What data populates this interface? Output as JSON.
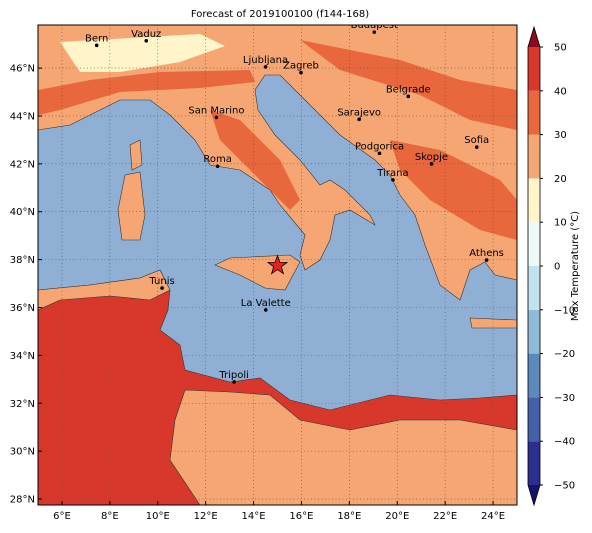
{
  "title": "Forecast of 2019100100 (f144-168)",
  "map": {
    "xlim": [
      5,
      25
    ],
    "ylim": [
      27.75,
      47.8
    ],
    "xticks": [
      {
        "value": 6,
        "label": "6°E"
      },
      {
        "value": 8,
        "label": "8°E"
      },
      {
        "value": 10,
        "label": "10°E"
      },
      {
        "value": 12,
        "label": "12°E"
      },
      {
        "value": 14,
        "label": "14°E"
      },
      {
        "value": 16,
        "label": "16°E"
      },
      {
        "value": 18,
        "label": "18°E"
      },
      {
        "value": 20,
        "label": "20°E"
      },
      {
        "value": 22,
        "label": "22°E"
      },
      {
        "value": 24,
        "label": "24°E"
      }
    ],
    "yticks": [
      {
        "value": 28,
        "label": "28°N"
      },
      {
        "value": 30,
        "label": "30°N"
      },
      {
        "value": 32,
        "label": "32°N"
      },
      {
        "value": 34,
        "label": "34°N"
      },
      {
        "value": 36,
        "label": "36°N"
      },
      {
        "value": 38,
        "label": "38°N"
      },
      {
        "value": 40,
        "label": "40°N"
      },
      {
        "value": 42,
        "label": "42°N"
      },
      {
        "value": 44,
        "label": "44°N"
      },
      {
        "value": 46,
        "label": "46°N"
      }
    ],
    "grid": true,
    "cities": [
      {
        "name": "Bern",
        "lon": 7.45,
        "lat": 46.95
      },
      {
        "name": "Vaduz",
        "lon": 9.52,
        "lat": 47.14
      },
      {
        "name": "Budapest",
        "lon": 19.04,
        "lat": 47.5
      },
      {
        "name": "Ljubljana",
        "lon": 14.5,
        "lat": 46.05
      },
      {
        "name": "Zagreb",
        "lon": 15.98,
        "lat": 45.81
      },
      {
        "name": "Belgrade",
        "lon": 20.46,
        "lat": 44.82
      },
      {
        "name": "San Marino",
        "lon": 12.45,
        "lat": 43.94
      },
      {
        "name": "Sarajevo",
        "lon": 18.41,
        "lat": 43.86
      },
      {
        "name": "Sofia",
        "lon": 23.32,
        "lat": 42.7
      },
      {
        "name": "Podgorica",
        "lon": 19.26,
        "lat": 42.44
      },
      {
        "name": "Skopje",
        "lon": 21.43,
        "lat": 42.0
      },
      {
        "name": "Roma",
        "lon": 12.5,
        "lat": 41.9
      },
      {
        "name": "Tirana",
        "lon": 19.82,
        "lat": 41.33
      },
      {
        "name": "Athens",
        "lon": 23.73,
        "lat": 37.98
      },
      {
        "name": "Tunis",
        "lon": 10.18,
        "lat": 36.81
      },
      {
        "name": "La Valette",
        "lon": 14.51,
        "lat": 35.9
      },
      {
        "name": "Tripoli",
        "lon": 13.19,
        "lat": 32.89
      }
    ],
    "star": {
      "lon": 15.0,
      "lat": 37.75,
      "color": "#e8221b"
    }
  },
  "colorbar": {
    "label": "Max Temperature (°C)",
    "lim": [
      -50,
      50
    ],
    "ticks": [
      {
        "value": -50,
        "label": "−50"
      },
      {
        "value": -40,
        "label": "−40"
      },
      {
        "value": -30,
        "label": "−30"
      },
      {
        "value": -20,
        "label": "−20"
      },
      {
        "value": -10,
        "label": "−10"
      },
      0,
      10,
      20,
      30,
      40,
      50
    ],
    "colors": [
      "#2b2f8f",
      "#4560a8",
      "#5b88bd",
      "#8fbad8",
      "#c3e2ee",
      "#eef8f6",
      "#fff5c8",
      "#f5a673",
      "#e9673d",
      "#d8382b"
    ],
    "under": "#14146e",
    "over": "#8b0a1f"
  }
}
